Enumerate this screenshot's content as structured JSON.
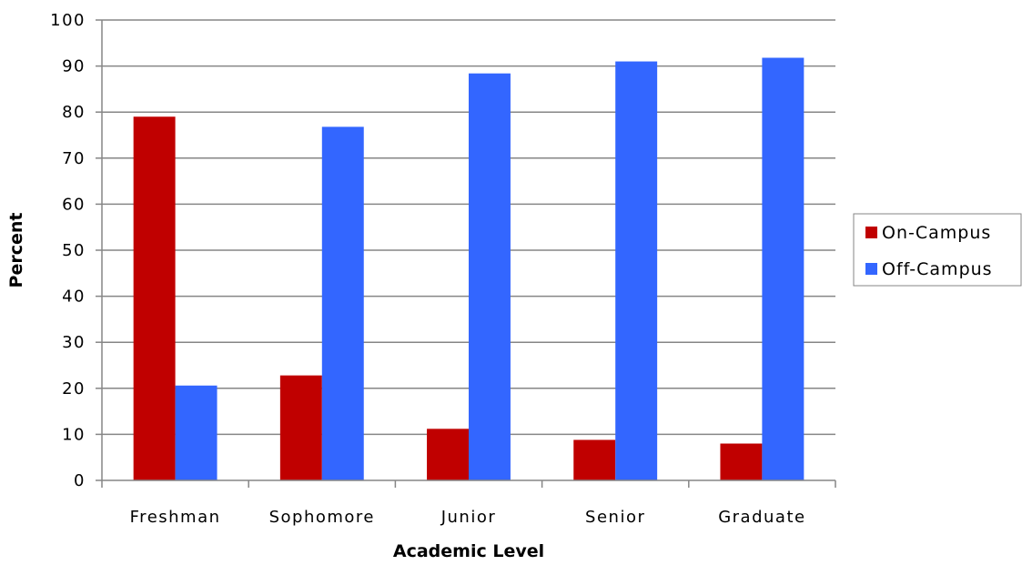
{
  "chart_data": {
    "type": "bar",
    "title": "",
    "xlabel": "Academic Level",
    "ylabel": "Percent",
    "categories": [
      "Freshman",
      "Sophomore",
      "Junior",
      "Senior",
      "Graduate"
    ],
    "series": [
      {
        "name": "On-Campus",
        "color": "#c00000",
        "values": [
          79,
          22.8,
          11.2,
          8.8,
          8
        ]
      },
      {
        "name": "Off-Campus",
        "color": "#3366ff",
        "values": [
          20.6,
          76.8,
          88.4,
          91,
          91.8
        ]
      }
    ],
    "ylim": [
      0,
      100
    ],
    "yticks": [
      "0",
      "10",
      "20",
      "30",
      "40",
      "50",
      "60",
      "70",
      "80",
      "90",
      "100"
    ],
    "grid": true,
    "legend_position": "right"
  }
}
